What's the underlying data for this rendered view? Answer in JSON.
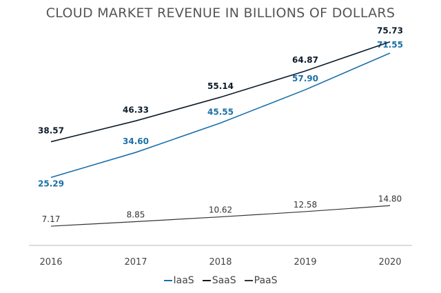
{
  "chart_data": {
    "type": "line",
    "title": "CLOUD MARKET REVENUE IN BILLIONS OF DOLLARS",
    "categories": [
      "2016",
      "2017",
      "2018",
      "2019",
      "2020"
    ],
    "series": [
      {
        "name": "IaaS",
        "values": [
          25.29,
          34.6,
          45.55,
          57.9,
          71.55
        ],
        "labels": [
          "25.29",
          "34.60",
          "45.55",
          "57.90",
          "71.55"
        ],
        "color": "#1a6fa8"
      },
      {
        "name": "SaaS",
        "values": [
          38.57,
          46.33,
          55.14,
          64.87,
          75.73
        ],
        "labels": [
          "38.57",
          "46.33",
          "55.14",
          "64.87",
          "75.73"
        ],
        "color": "#0d1b2a"
      },
      {
        "name": "PaaS",
        "values": [
          7.17,
          8.85,
          10.62,
          12.58,
          14.8
        ],
        "labels": [
          "7.17",
          "8.85",
          "10.62",
          "12.58",
          "14.80"
        ],
        "color": "#333333"
      }
    ],
    "ylim": [
      0,
      80
    ],
    "grid": false,
    "legend_position": "bottom-center"
  }
}
